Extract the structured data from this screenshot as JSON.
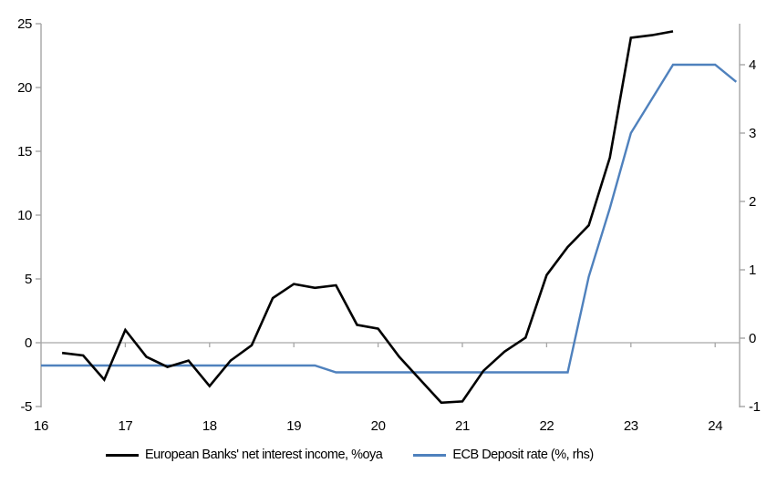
{
  "page": {
    "background_color": "#ffffff",
    "text_color": "#000000",
    "axis_color": "#a6a6a6"
  },
  "legend": {
    "position": "bottom",
    "items": [
      {
        "label": "European Banks' net interest income, %oya",
        "color": "#000000"
      },
      {
        "label": "ECB Deposit rate (%, rhs)",
        "color": "#4f81bd"
      }
    ]
  },
  "chart_data": {
    "type": "line",
    "grid": "zero-gridline-only",
    "legend_position": "bottom",
    "x_axis": {
      "label": "",
      "ticks": [
        16,
        17,
        18,
        19,
        20,
        21,
        22,
        23,
        24
      ],
      "tick_labels": [
        "16",
        "17",
        "18",
        "19",
        "20",
        "21",
        "22",
        "23",
        "24"
      ],
      "range": [
        16,
        24.29
      ]
    },
    "left_axis": {
      "label": "",
      "ticks": [
        -5,
        0,
        5,
        10,
        15,
        20,
        25
      ],
      "tick_labels": [
        "-5",
        "0",
        "5",
        "10",
        "15",
        "20",
        "25"
      ],
      "range": [
        -5,
        25
      ]
    },
    "right_axis": {
      "label": "",
      "ticks": [
        -1,
        0,
        1,
        2,
        3,
        4
      ],
      "tick_labels": [
        "-1",
        "0",
        "1",
        "2",
        "3",
        "4"
      ],
      "range": [
        -1,
        4.6
      ]
    },
    "series": [
      {
        "name": "European Banks' net interest income, %oya",
        "axis": "left",
        "color": "#000000",
        "points": [
          [
            16.25,
            -0.8
          ],
          [
            16.5,
            -1.0
          ],
          [
            16.75,
            -2.9
          ],
          [
            17.0,
            1.0
          ],
          [
            17.25,
            -1.1
          ],
          [
            17.5,
            -1.9
          ],
          [
            17.75,
            -1.4
          ],
          [
            18.0,
            -3.4
          ],
          [
            18.25,
            -1.4
          ],
          [
            18.5,
            -0.2
          ],
          [
            18.75,
            3.5
          ],
          [
            19.0,
            4.6
          ],
          [
            19.25,
            4.3
          ],
          [
            19.5,
            4.5
          ],
          [
            19.75,
            1.4
          ],
          [
            20.0,
            1.1
          ],
          [
            20.25,
            -1.1
          ],
          [
            20.5,
            -2.9
          ],
          [
            20.75,
            -4.7
          ],
          [
            21.0,
            -4.6
          ],
          [
            21.25,
            -2.2
          ],
          [
            21.5,
            -0.7
          ],
          [
            21.75,
            0.4
          ],
          [
            22.0,
            5.3
          ],
          [
            22.25,
            7.5
          ],
          [
            22.5,
            9.2
          ],
          [
            22.75,
            14.5
          ],
          [
            23.0,
            23.9
          ],
          [
            23.25,
            24.1
          ],
          [
            23.5,
            24.4
          ]
        ]
      },
      {
        "name": "ECB Deposit rate (%, rhs)",
        "axis": "right",
        "color": "#4f81bd",
        "points": [
          [
            16.0,
            -0.4
          ],
          [
            19.25,
            -0.4
          ],
          [
            19.5,
            -0.5
          ],
          [
            22.25,
            -0.5
          ],
          [
            22.5,
            0.9
          ],
          [
            22.75,
            1.9
          ],
          [
            23.0,
            3.0
          ],
          [
            23.25,
            3.5
          ],
          [
            23.5,
            4.0
          ],
          [
            24.0,
            4.0
          ],
          [
            24.25,
            3.75
          ]
        ]
      }
    ]
  }
}
